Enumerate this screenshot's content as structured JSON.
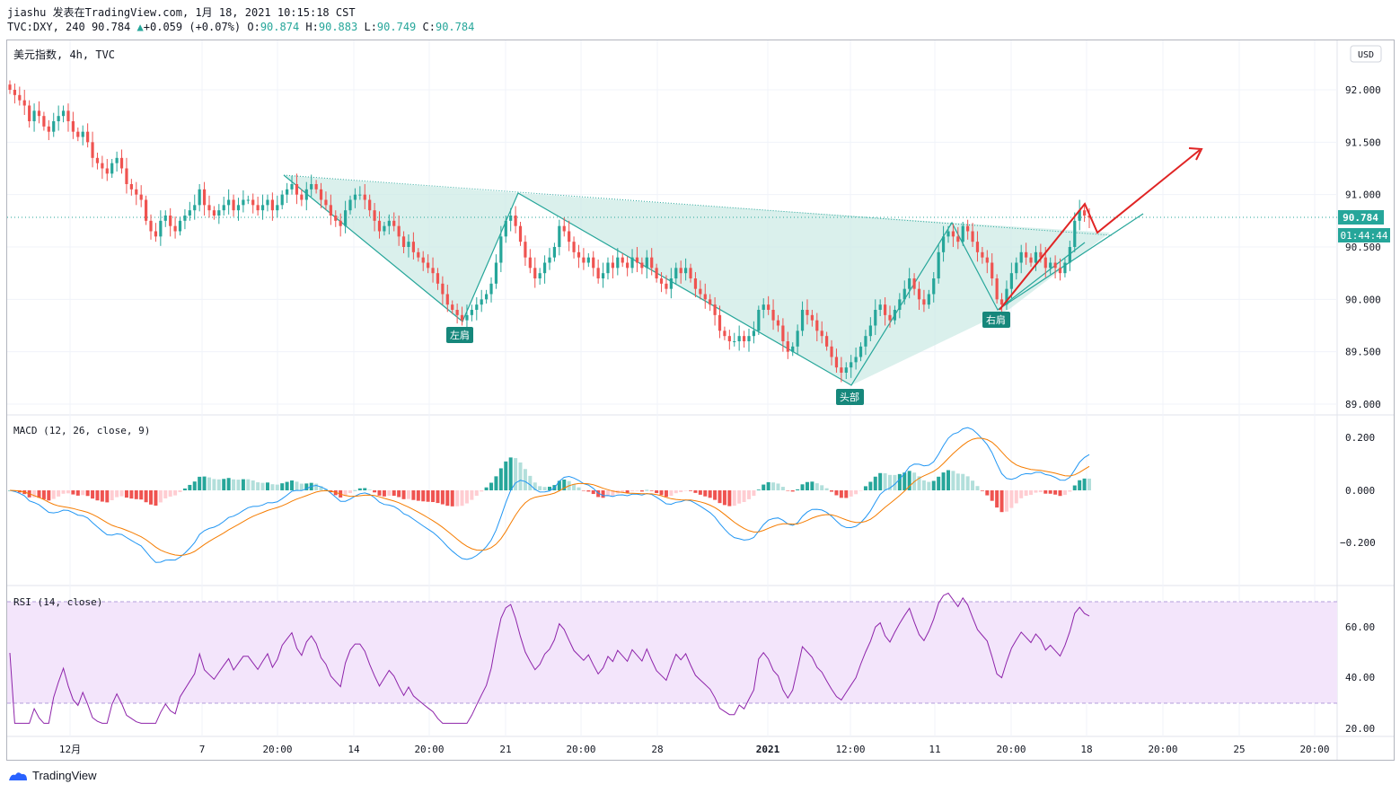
{
  "header": {
    "line1": "jiashu 发表在TradingView.com, 1月 18, 2021 10:15:18 CST",
    "symbol": "TVC:DXY, 240",
    "last": "90.784",
    "change": "+0.059 (+0.07%)",
    "o_label": "O:",
    "o_val": "90.874",
    "h_label": "H:",
    "h_val": "90.883",
    "l_label": "L:",
    "l_val": "90.749",
    "c_label": "C:",
    "c_val": "90.784"
  },
  "footer": {
    "brand": "TradingView",
    "logo_icon": "tradingview-logo-icon"
  },
  "chart_data": {
    "type": "candlestick",
    "title": "美元指数, 4h, TVC",
    "currency": "USD",
    "ylim": [
      88.95,
      92.35
    ],
    "price_ticks": [
      "92.000",
      "91.500",
      "91.000",
      "90.500",
      "90.000",
      "89.500",
      "89.000"
    ],
    "last_price_label": "90.784",
    "countdown_label": "01:44:44",
    "x_ticks": [
      "12月",
      "7",
      "20:00",
      "14",
      "20:00",
      "21",
      "20:00",
      "28",
      "2021",
      "12:00",
      "11",
      "20:00",
      "18",
      "20:00",
      "25",
      "20:00"
    ],
    "pattern_labels": [
      "左肩",
      "头部",
      "右肩"
    ],
    "closes": [
      92.0,
      91.95,
      91.9,
      91.85,
      91.7,
      91.8,
      91.75,
      91.65,
      91.6,
      91.7,
      91.75,
      91.8,
      91.7,
      91.6,
      91.55,
      91.6,
      91.5,
      91.35,
      91.3,
      91.25,
      91.2,
      91.3,
      91.35,
      91.25,
      91.1,
      91.05,
      91.0,
      90.95,
      90.75,
      90.65,
      90.6,
      90.75,
      90.8,
      90.7,
      90.65,
      90.75,
      90.8,
      90.85,
      90.9,
      91.05,
      90.9,
      90.85,
      90.8,
      90.85,
      90.9,
      90.95,
      90.85,
      90.9,
      90.95,
      90.95,
      90.9,
      90.85,
      90.9,
      90.95,
      90.85,
      90.9,
      91.0,
      91.05,
      91.1,
      91.0,
      90.95,
      91.05,
      91.1,
      91.05,
      90.95,
      90.9,
      90.8,
      90.75,
      90.7,
      90.85,
      90.95,
      91.0,
      91.0,
      90.95,
      90.85,
      90.75,
      90.65,
      90.7,
      90.75,
      90.7,
      90.6,
      90.5,
      90.55,
      90.45,
      90.4,
      90.35,
      90.3,
      90.25,
      90.15,
      90.05,
      89.95,
      89.9,
      89.85,
      89.8,
      89.85,
      89.9,
      89.95,
      90.0,
      90.05,
      90.15,
      90.35,
      90.6,
      90.75,
      90.8,
      90.7,
      90.55,
      90.4,
      90.3,
      90.2,
      90.25,
      90.35,
      90.4,
      90.5,
      90.7,
      90.65,
      90.55,
      90.45,
      90.4,
      90.35,
      90.4,
      90.3,
      90.2,
      90.25,
      90.35,
      90.3,
      90.4,
      90.35,
      90.3,
      90.4,
      90.35,
      90.3,
      90.4,
      90.3,
      90.2,
      90.15,
      90.1,
      90.2,
      90.3,
      90.25,
      90.3,
      90.2,
      90.1,
      90.05,
      90.0,
      89.95,
      89.85,
      89.7,
      89.65,
      89.6,
      89.6,
      89.65,
      89.6,
      89.65,
      89.7,
      89.9,
      89.95,
      89.9,
      89.8,
      89.75,
      89.6,
      89.5,
      89.55,
      89.7,
      89.9,
      89.85,
      89.8,
      89.7,
      89.65,
      89.55,
      89.45,
      89.35,
      89.3,
      89.35,
      89.4,
      89.45,
      89.55,
      89.65,
      89.75,
      89.9,
      89.95,
      89.85,
      89.8,
      89.9,
      90.0,
      90.1,
      90.2,
      90.1,
      90.0,
      89.95,
      90.05,
      90.2,
      90.45,
      90.6,
      90.65,
      90.6,
      90.55,
      90.7,
      90.65,
      90.55,
      90.45,
      90.4,
      90.35,
      90.2,
      90.0,
      89.95,
      90.1,
      90.25,
      90.35,
      90.45,
      90.4,
      90.35,
      90.45,
      90.4,
      90.3,
      90.35,
      90.3,
      90.25,
      90.35,
      90.5,
      90.75,
      90.85,
      90.8,
      90.78
    ]
  }
}
